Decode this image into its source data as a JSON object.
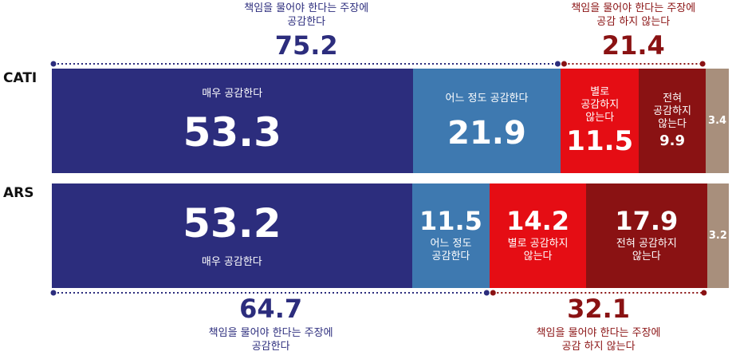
{
  "colors": {
    "very_agree": "#2c2d7d",
    "somewhat_agree": "#3e79b0",
    "somewhat_disagree": "#e50d14",
    "strongly_disagree": "#8a1213",
    "no_answer": "#a88f7c",
    "agree_text": "#2c2d7d",
    "disagree_text": "#8a1213"
  },
  "rows": [
    {
      "label": "CATI",
      "segments": [
        {
          "key": "very_agree",
          "value": 53.3,
          "value_text": "53.3",
          "label": "매우 공감한다"
        },
        {
          "key": "somewhat_agree",
          "value": 21.9,
          "value_text": "21.9",
          "label": "어느 정도 공감한다"
        },
        {
          "key": "somewhat_disagree",
          "value": 11.5,
          "value_text": "11.5",
          "label": "별로\n공감하지\n않는다"
        },
        {
          "key": "strongly_disagree",
          "value": 9.9,
          "value_text": "9.9",
          "label": "전혀\n공감하지\n않는다"
        },
        {
          "key": "no_answer",
          "value": 3.4,
          "value_text": "3.4",
          "label": ""
        }
      ],
      "agree_total": {
        "value": "75.2",
        "text": "책임을 물어야 한다는 주장에\n공감한다"
      },
      "disagree_total": {
        "value": "21.4",
        "text": "책임을 물어야 한다는 주장에\n공감 하지 않는다"
      }
    },
    {
      "label": "ARS",
      "segments": [
        {
          "key": "very_agree",
          "value": 53.2,
          "value_text": "53.2",
          "label": "매우 공감한다"
        },
        {
          "key": "somewhat_agree",
          "value": 11.5,
          "value_text": "11.5",
          "label": "어느 정도\n공감한다"
        },
        {
          "key": "somewhat_disagree",
          "value": 14.2,
          "value_text": "14.2",
          "label": "별로 공감하지\n않는다"
        },
        {
          "key": "strongly_disagree",
          "value": 17.9,
          "value_text": "17.9",
          "label": "전혀 공감하지\n않는다"
        },
        {
          "key": "no_answer",
          "value": 3.2,
          "value_text": "3.2",
          "label": ""
        }
      ],
      "agree_total": {
        "value": "64.7",
        "text": "책임을 물어야 한다는 주장에\n공감한다"
      },
      "disagree_total": {
        "value": "32.1",
        "text": "책임을 물어야 한다는 주장에\n공감 하지 않는다"
      }
    }
  ],
  "chart_data": {
    "type": "bar",
    "stacked": true,
    "orientation": "horizontal",
    "categories": [
      "CATI",
      "ARS"
    ],
    "series": [
      {
        "name": "매우 공감한다",
        "values": [
          53.3,
          53.2
        ]
      },
      {
        "name": "어느 정도 공감한다",
        "values": [
          21.9,
          11.5
        ]
      },
      {
        "name": "별로 공감하지 않는다",
        "values": [
          11.5,
          14.2
        ]
      },
      {
        "name": "전혀 공감하지 않는다",
        "values": [
          9.9,
          17.9
        ]
      },
      {
        "name": "",
        "values": [
          3.4,
          3.2
        ]
      }
    ],
    "totals": {
      "agree": [
        75.2,
        64.7
      ],
      "disagree": [
        21.4,
        32.1
      ]
    },
    "title": "",
    "xlabel": "",
    "ylabel": "",
    "xlim": [
      0,
      100
    ],
    "grid": false,
    "legend": "none"
  }
}
